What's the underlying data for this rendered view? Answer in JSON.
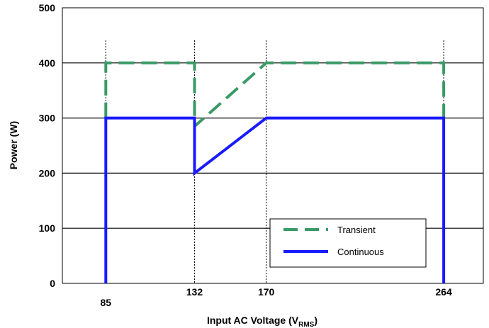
{
  "chart_data": {
    "type": "line",
    "xlabel": "Input AC Voltage (V",
    "xlabel_sub": "RMS",
    "xlabel_close": ")",
    "ylabel": "Power (W)",
    "ylim": [
      0,
      500
    ],
    "yticks": [
      "0",
      "100",
      "200",
      "300",
      "400",
      "500"
    ],
    "xticks": [
      {
        "value": 85,
        "label": "85"
      },
      {
        "value": 132,
        "label": "132"
      },
      {
        "value": 170,
        "label": "170"
      },
      {
        "value": 264,
        "label": "264"
      }
    ],
    "xlim": [
      62,
      285
    ],
    "grid": true,
    "legend_position": "bottom-right",
    "series": [
      {
        "name": "Transient",
        "color": "#3a9a66",
        "dash": "dashed",
        "points": [
          [
            85,
            300
          ],
          [
            85,
            400
          ],
          [
            132,
            400
          ],
          [
            132,
            285
          ],
          [
            170,
            400
          ],
          [
            264,
            400
          ],
          [
            264,
            300
          ]
        ]
      },
      {
        "name": "Continuous",
        "color": "#1a1aff",
        "dash": "solid",
        "points": [
          [
            85,
            0
          ],
          [
            85,
            300
          ],
          [
            132,
            300
          ],
          [
            132,
            200
          ],
          [
            170,
            300
          ],
          [
            264,
            300
          ],
          [
            264,
            0
          ]
        ]
      }
    ]
  }
}
